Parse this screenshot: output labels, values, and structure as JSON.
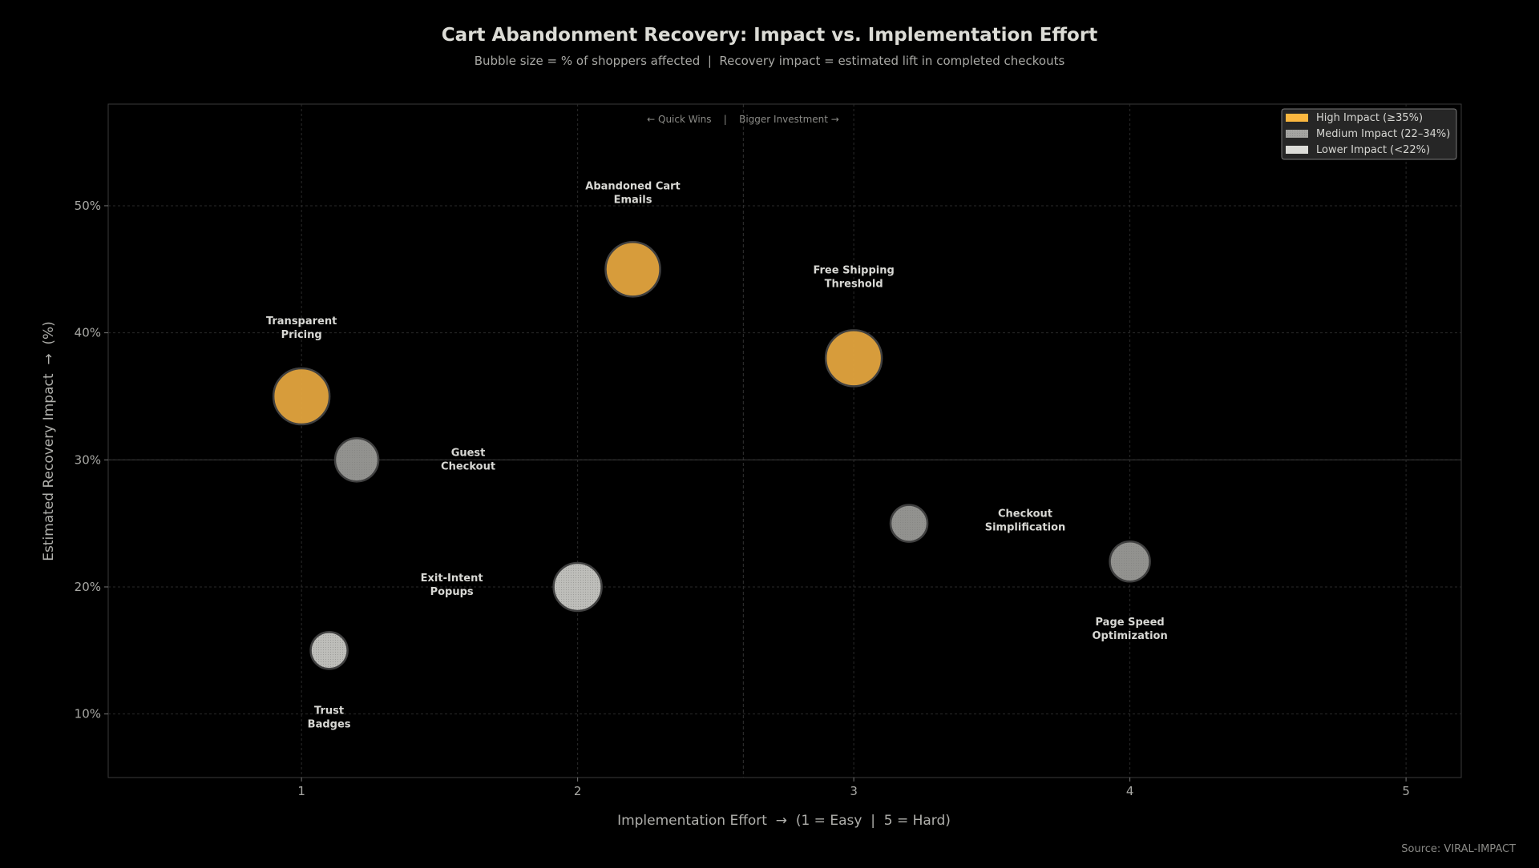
{
  "chart_data": {
    "type": "scatter",
    "title": "Cart Abandonment Recovery: Impact vs. Implementation Effort",
    "subtitle": "Bubble size = % of shoppers affected  |  Recovery impact = estimated lift in completed checkouts",
    "xlabel": "Implementation Effort  →  (1 = Easy  |  5 = Hard)",
    "ylabel": "Estimated Recovery Impact  →  (%)",
    "xlim": [
      0.3,
      5.2
    ],
    "ylim": [
      5,
      58
    ],
    "xticks": [
      1,
      2,
      3,
      4,
      5
    ],
    "xtick_labels": [
      "1",
      "2",
      "3",
      "4",
      "5"
    ],
    "yticks": [
      10,
      20,
      30,
      40,
      50
    ],
    "ytick_labels": [
      "10%",
      "20%",
      "30%",
      "40%",
      "50%"
    ],
    "grid": true,
    "annotation": "← Quick Wins    |    Bigger Investment →",
    "divider_x": 2.6,
    "divider_y": 30,
    "legend_placement": "top-right",
    "legend": [
      {
        "label": "High Impact (≥35%)",
        "category": "high"
      },
      {
        "label": "Medium Impact (22–34%)",
        "category": "medium"
      },
      {
        "label": "Lower Impact (<22%)",
        "category": "lower"
      }
    ],
    "colors": {
      "high": "#e3a53f",
      "medium": "#9a9a97",
      "lower": "#c9c9c5"
    },
    "points": [
      {
        "label": "Transparent Pricing",
        "x": 1.0,
        "y": 35,
        "size": 1225,
        "category": "high"
      },
      {
        "label": "Guest Checkout",
        "x": 1.2,
        "y": 30,
        "size": 730,
        "category": "medium"
      },
      {
        "label": "Abandoned Cart Emails",
        "x": 2.2,
        "y": 45,
        "size": 1160,
        "category": "high"
      },
      {
        "label": "Free Shipping Threshold",
        "x": 3.0,
        "y": 38,
        "size": 1225,
        "category": "high"
      },
      {
        "label": "Checkout Simplification",
        "x": 3.2,
        "y": 25,
        "size": 530,
        "category": "medium"
      },
      {
        "label": "Page Speed Optimization",
        "x": 4.0,
        "y": 22,
        "size": 625,
        "category": "medium"
      },
      {
        "label": "Exit-Intent Popups",
        "x": 2.0,
        "y": 20,
        "size": 900,
        "category": "lower"
      },
      {
        "label": "Trust Badges",
        "x": 1.1,
        "y": 15,
        "size": 530,
        "category": "lower"
      }
    ],
    "point_labels": [
      [
        "Transparent",
        "Pricing"
      ],
      [
        "Guest",
        "Checkout"
      ],
      [
        "Abandoned Cart",
        "Emails"
      ],
      [
        "Free Shipping",
        "Threshold"
      ],
      [
        "Checkout",
        "Simplification"
      ],
      [
        "Page Speed",
        "Optimization"
      ],
      [
        "Exit-Intent",
        "Popups"
      ],
      [
        "Trust",
        "Badges"
      ]
    ]
  },
  "footer": {
    "source": "Source: VIRAL-IMPACT"
  }
}
